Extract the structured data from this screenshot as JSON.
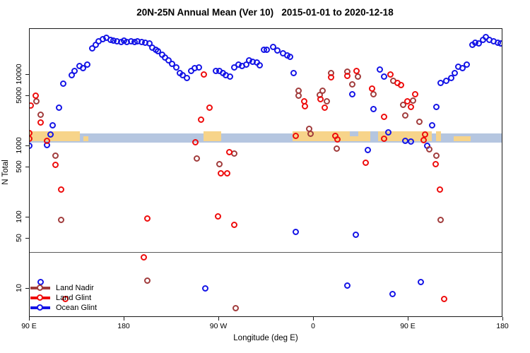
{
  "title": "20N-25N Annual Mean (Ver 10)   2015-01-01 to 2020-12-18",
  "axes": {
    "x_label": "Longitude (deg E)",
    "y_label": "N Total",
    "x_ticks": [
      {
        "lon": 90,
        "label": "90 E"
      },
      {
        "lon": 180,
        "label": "180"
      },
      {
        "lon": 270,
        "label": "90 W"
      },
      {
        "lon": 360,
        "label": "0"
      },
      {
        "lon": 450,
        "label": "90 E"
      },
      {
        "lon": 540,
        "label": "180"
      }
    ],
    "y_ticks": [
      {
        "value": 10000,
        "label": "10000"
      },
      {
        "value": 5000,
        "label": "5000"
      },
      {
        "value": 1000,
        "label": "1000"
      },
      {
        "value": 500,
        "label": "500"
      },
      {
        "value": 100,
        "label": "100"
      },
      {
        "value": 50,
        "label": "50"
      },
      {
        "value": 10,
        "label": "10"
      }
    ]
  },
  "colors": {
    "land_nadir": "#a13c3c",
    "land_glint": "#ee0c0c",
    "ocean_glint": "#1414e6",
    "strip_ocean": "#b5c6e0",
    "strip_land": "#f7d48a",
    "threshold_line": "#5a5a5a"
  },
  "legend": [
    {
      "name": "Land Nadir",
      "color": "#a13c3c"
    },
    {
      "name": "Land Glint",
      "color": "#ee0c0c"
    },
    {
      "name": "Ocean Glint",
      "color": "#1414e6"
    }
  ],
  "map_strip": {
    "land_segments": [
      {
        "from": 90,
        "to": 138,
        "band": "full"
      },
      {
        "from": 141,
        "to": 146,
        "band": "lower"
      },
      {
        "from": 255,
        "to": 272,
        "band": "full"
      },
      {
        "from": 340,
        "to": 472,
        "band": "full"
      },
      {
        "from": 476,
        "to": 481,
        "band": "full"
      },
      {
        "from": 493,
        "to": 509,
        "band": "lower"
      }
    ],
    "ocean_notches": [
      {
        "from": 394,
        "to": 402,
        "band": "upper"
      },
      {
        "from": 414,
        "to": 421,
        "band": "full"
      }
    ]
  },
  "threshold_line": {
    "value": 33
  },
  "chart_data": {
    "type": "scatter",
    "title": "20N-25N Annual Mean (Ver 10)  2015-01-01 to 2020-12-18",
    "xlabel": "Longitude (deg E)",
    "ylabel": "N Total",
    "x_axis": {
      "note": "degrees east, unwrapped from 90E to 180 (second crossing)",
      "range": [
        90,
        540
      ]
    },
    "y_axis": {
      "scale": "log10",
      "range": [
        4.5,
        40000
      ]
    },
    "legend_position": "bottom-left",
    "grid": false,
    "series": [
      {
        "name": "Ocean Glint",
        "color": "#1414e6",
        "points": [
          [
            90,
            1000
          ],
          [
            107,
            1020
          ],
          [
            110,
            1450
          ],
          [
            112,
            1950
          ],
          [
            118,
            3390
          ],
          [
            122,
            7410
          ],
          [
            130,
            9770
          ],
          [
            133,
            11200
          ],
          [
            138,
            13200
          ],
          [
            141,
            12300
          ],
          [
            145,
            13800
          ],
          [
            150,
            23400
          ],
          [
            153,
            26300
          ],
          [
            156,
            29500
          ],
          [
            160,
            31600
          ],
          [
            163,
            32400
          ],
          [
            167,
            30900
          ],
          [
            170,
            30200
          ],
          [
            173,
            29500
          ],
          [
            177,
            28800
          ],
          [
            180,
            30200
          ],
          [
            183,
            28800
          ],
          [
            187,
            29500
          ],
          [
            190,
            28800
          ],
          [
            193,
            29500
          ],
          [
            197,
            28800
          ],
          [
            200,
            28200
          ],
          [
            204,
            27200
          ],
          [
            207,
            24000
          ],
          [
            210,
            22400
          ],
          [
            212,
            21400
          ],
          [
            216,
            19000
          ],
          [
            219,
            17400
          ],
          [
            222,
            15800
          ],
          [
            226,
            14100
          ],
          [
            230,
            12600
          ],
          [
            233,
            10500
          ],
          [
            236,
            9770
          ],
          [
            240,
            8910
          ],
          [
            244,
            11200
          ],
          [
            247,
            12300
          ],
          [
            251,
            12600
          ],
          [
            267,
            11200
          ],
          [
            271,
            11200
          ],
          [
            274,
            10500
          ],
          [
            277,
            9770
          ],
          [
            281,
            9330
          ],
          [
            285,
            12600
          ],
          [
            289,
            13800
          ],
          [
            292,
            13200
          ],
          [
            296,
            13800
          ],
          [
            299,
            15800
          ],
          [
            302,
            15100
          ],
          [
            306,
            14800
          ],
          [
            309,
            13500
          ],
          [
            313,
            22400
          ],
          [
            316,
            22400
          ],
          [
            322,
            24500
          ],
          [
            326,
            21900
          ],
          [
            331,
            20000
          ],
          [
            335,
            18600
          ],
          [
            338,
            17800
          ],
          [
            341,
            10500
          ],
          [
            397,
            5280
          ],
          [
            417,
            3240
          ],
          [
            423,
            11700
          ],
          [
            427,
            9330
          ],
          [
            431,
            1550
          ],
          [
            412,
            864
          ],
          [
            447,
            1180
          ],
          [
            453,
            1140
          ],
          [
            468,
            1000
          ],
          [
            473,
            1950
          ],
          [
            477,
            3470
          ],
          [
            481,
            7590
          ],
          [
            486,
            8130
          ],
          [
            491,
            8910
          ],
          [
            494,
            10500
          ],
          [
            498,
            12900
          ],
          [
            502,
            12300
          ],
          [
            506,
            13800
          ],
          [
            511,
            26300
          ],
          [
            514,
            28200
          ],
          [
            517,
            27500
          ],
          [
            521,
            30900
          ],
          [
            524,
            33100
          ],
          [
            527,
            30900
          ],
          [
            531,
            29500
          ],
          [
            535,
            28200
          ],
          [
            538,
            27500
          ],
          [
            343,
            62
          ],
          [
            400,
            56
          ],
          [
            392,
            11
          ],
          [
            435,
            8.3
          ],
          [
            462,
            12.3
          ],
          [
            257,
            10
          ],
          [
            101,
            12.3
          ]
        ]
      },
      {
        "name": "Land Nadir",
        "color": "#a13c3c",
        "points": [
          [
            97,
            4170
          ],
          [
            101,
            2750
          ],
          [
            115,
            719
          ],
          [
            120,
            91
          ],
          [
            202,
            12.9
          ],
          [
            286,
            5.3
          ],
          [
            249,
            657
          ],
          [
            285,
            770
          ],
          [
            271,
            553
          ],
          [
            346,
            5900
          ],
          [
            346,
            5000
          ],
          [
            356,
            1740
          ],
          [
            357,
            1480
          ],
          [
            366,
            5160
          ],
          [
            369,
            5900
          ],
          [
            373,
            4170
          ],
          [
            377,
            10500
          ],
          [
            382,
            912
          ],
          [
            392,
            10900
          ],
          [
            397,
            7240
          ],
          [
            402,
            9330
          ],
          [
            417,
            5280
          ],
          [
            436,
            8130
          ],
          [
            445,
            3720
          ],
          [
            447,
            2690
          ],
          [
            455,
            4270
          ],
          [
            461,
            2190
          ],
          [
            470,
            891
          ],
          [
            477,
            726
          ],
          [
            481,
            91
          ]
        ]
      },
      {
        "name": "Land Glint",
        "color": "#ee0c0c",
        "points": [
          [
            96,
            5000
          ],
          [
            91,
            3630
          ],
          [
            101,
            2140
          ],
          [
            90,
            1510
          ],
          [
            90,
            1260
          ],
          [
            107,
            1180
          ],
          [
            115,
            541
          ],
          [
            120,
            243
          ],
          [
            199,
            27
          ],
          [
            202,
            95
          ],
          [
            256,
            10000
          ],
          [
            248,
            1120
          ],
          [
            253,
            2340
          ],
          [
            261,
            3390
          ],
          [
            280,
            815
          ],
          [
            272,
            411
          ],
          [
            278,
            411
          ],
          [
            269,
            102
          ],
          [
            285,
            78
          ],
          [
            343,
            1380
          ],
          [
            351,
            4170
          ],
          [
            352,
            3550
          ],
          [
            367,
            4500
          ],
          [
            371,
            3390
          ],
          [
            377,
            9120
          ],
          [
            392,
            9550
          ],
          [
            401,
            11200
          ],
          [
            416,
            6310
          ],
          [
            427,
            2570
          ],
          [
            427,
            1260
          ],
          [
            433,
            10000
          ],
          [
            440,
            7590
          ],
          [
            443,
            7080
          ],
          [
            449,
            4170
          ],
          [
            453,
            3470
          ],
          [
            457,
            5280
          ],
          [
            466,
            1450
          ],
          [
            465,
            1200
          ],
          [
            476,
            548
          ],
          [
            480,
            243
          ],
          [
            484,
            7.1
          ],
          [
            381,
            1380
          ],
          [
            383,
            1230
          ],
          [
            410,
            578
          ],
          [
            124,
            7.1
          ]
        ]
      }
    ]
  }
}
